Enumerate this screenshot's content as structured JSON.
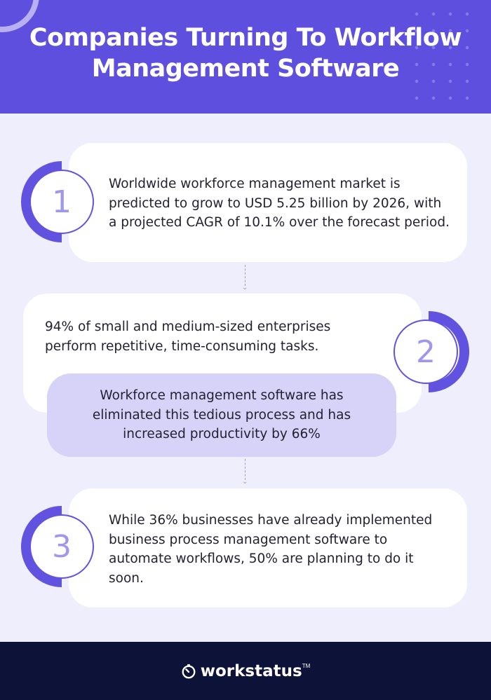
{
  "header": {
    "title": "Companies Turning To Workflow Management Software"
  },
  "steps": [
    {
      "number": "1",
      "text": "Worldwide workforce management market is predicted to grow to USD 5.25 billion by 2026, with a projected CAGR of 10.1% over the forecast period."
    },
    {
      "number": "2",
      "text": "94% of small and medium-sized enterprises perform repetitive, time-consuming tasks.",
      "highlight": "Workforce management software has eliminated this tedious process and has increased productivity by 66%"
    },
    {
      "number": "3",
      "text": "While 36% businesses have already implemented business process management software to automate workflows, 50% are planning to do it soon."
    }
  ],
  "footer": {
    "brand": "workstatus",
    "trademark": "TM"
  },
  "colors": {
    "header_bg": "#5e4fde",
    "page_bg": "#eeeefc",
    "accent": "#6152e0",
    "highlight_bg": "#d6d2f8",
    "footer_bg": "#0c1238"
  }
}
